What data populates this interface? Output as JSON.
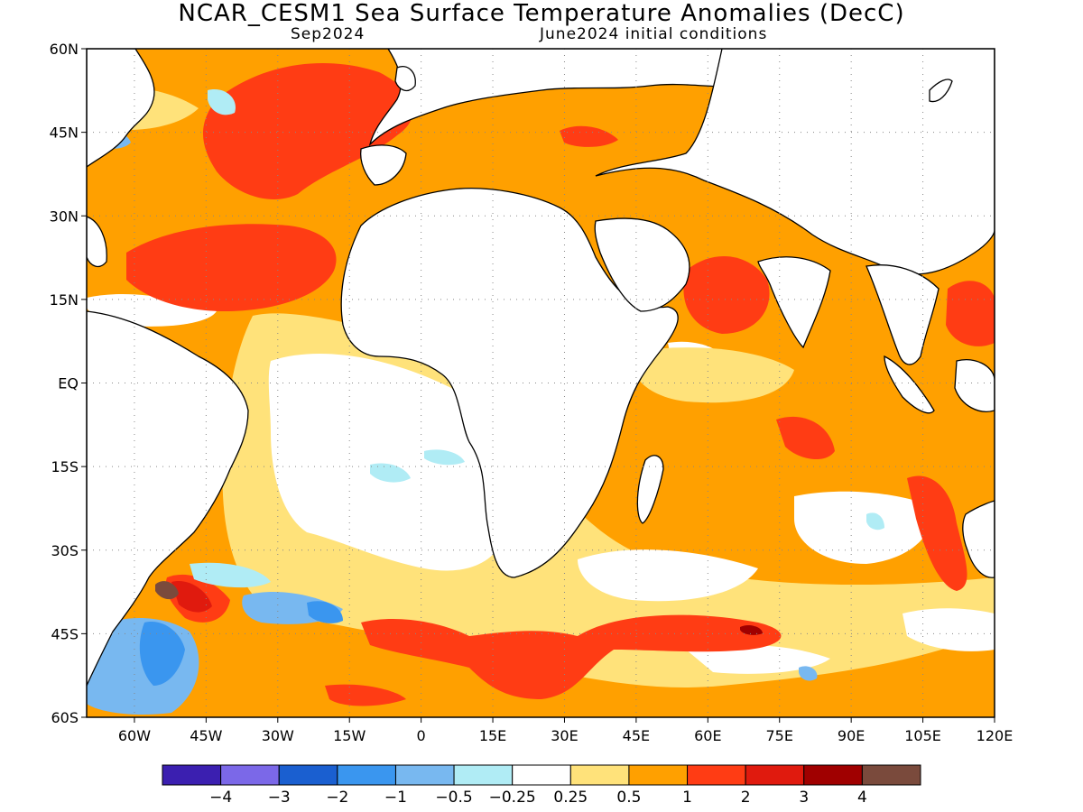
{
  "title": "NCAR_CESM1 Sea Surface Temperature Anomalies (DecC)",
  "subtitle_left": "Sep2024",
  "subtitle_right": "June2024 initial conditions",
  "map": {
    "lon_range": [
      -70,
      120
    ],
    "lat_range": [
      -60,
      60
    ],
    "grid": true,
    "lat_ticks": [
      "60N",
      "45N",
      "30N",
      "15N",
      "EQ",
      "15S",
      "30S",
      "45S",
      "60S"
    ],
    "lon_ticks": [
      "60W",
      "45W",
      "30W",
      "15W",
      "0",
      "15E",
      "30E",
      "45E",
      "60E",
      "75E",
      "90E",
      "105E",
      "120E"
    ]
  },
  "colorbar": {
    "colors": [
      "#3b1fb0",
      "#7b68e8",
      "#1a5fd0",
      "#3a96ef",
      "#78b8f0",
      "#b0ecf5",
      "#ffffff",
      "#ffe27a",
      "#ffa000",
      "#ff3c14",
      "#e01a0e",
      "#a00000",
      "#7a4a3c"
    ],
    "labels": [
      "−4",
      "−3",
      "−2",
      "−1",
      "−0.5",
      "−0.25",
      "0.25",
      "0.5",
      "1",
      "2",
      "3",
      "4"
    ]
  },
  "fill_colors": {
    "ocean_base": "#ffa000",
    "light": "#ffe27a",
    "neutral": "#ffffff",
    "warm": "#ff3c14",
    "hot": "#e01a0e",
    "very_hot": "#a00000",
    "extreme": "#7a4a3c",
    "cool": "#b0ecf5",
    "cooler": "#78b8f0",
    "cold": "#3a96ef",
    "land": "#ffffff"
  }
}
